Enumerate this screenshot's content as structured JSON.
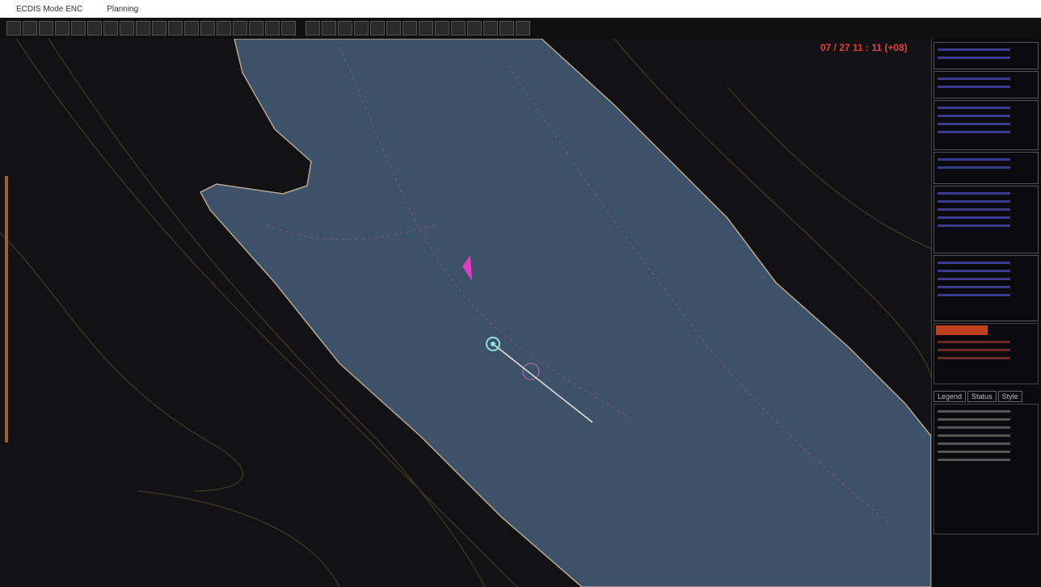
{
  "window": {
    "title": "ECDIS Mode ENC",
    "mode": "Planning"
  },
  "status": {
    "datetime": "07 / 27  11 : 11 (+08)"
  },
  "panel": {
    "tabs": [
      "Legend",
      "Status",
      "Style"
    ]
  }
}
